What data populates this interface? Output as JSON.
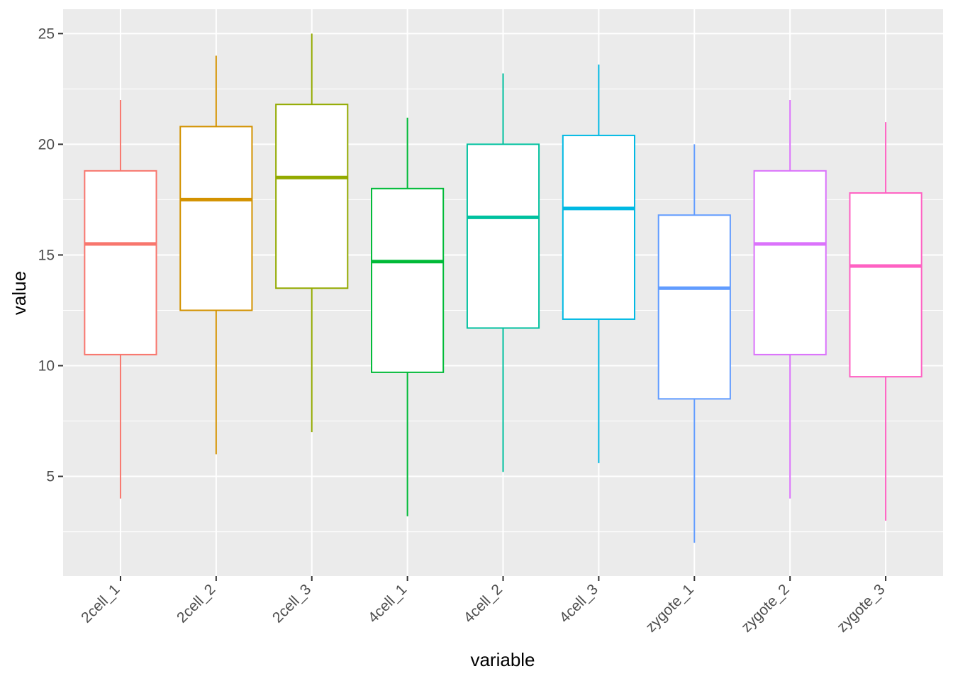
{
  "chart_data": {
    "type": "boxplot",
    "xlabel": "variable",
    "ylabel": "value",
    "ylim": [
      0.5,
      26.1
    ],
    "yticks": [
      5,
      10,
      15,
      20,
      25
    ],
    "grid": true,
    "legend": "none",
    "categories": [
      "2cell_1",
      "2cell_2",
      "2cell_3",
      "4cell_1",
      "4cell_2",
      "4cell_3",
      "zygote_1",
      "zygote_2",
      "zygote_3"
    ],
    "colors": [
      "#F8766D",
      "#D39200",
      "#93AA00",
      "#00BA38",
      "#00C19F",
      "#00B9E3",
      "#619CFF",
      "#DB72FB",
      "#FF61C3"
    ],
    "boxes": [
      {
        "category": "2cell_1",
        "min": 4.0,
        "q1": 10.5,
        "median": 15.5,
        "q3": 18.8,
        "max": 22.0
      },
      {
        "category": "2cell_2",
        "min": 6.0,
        "q1": 12.5,
        "median": 17.5,
        "q3": 20.8,
        "max": 24.0
      },
      {
        "category": "2cell_3",
        "min": 7.0,
        "q1": 13.5,
        "median": 18.5,
        "q3": 21.8,
        "max": 25.0
      },
      {
        "category": "4cell_1",
        "min": 3.2,
        "q1": 9.7,
        "median": 14.7,
        "q3": 18.0,
        "max": 21.2
      },
      {
        "category": "4cell_2",
        "min": 5.2,
        "q1": 11.7,
        "median": 16.7,
        "q3": 20.0,
        "max": 23.2
      },
      {
        "category": "4cell_3",
        "min": 5.6,
        "q1": 12.1,
        "median": 17.1,
        "q3": 20.4,
        "max": 23.6
      },
      {
        "category": "zygote_1",
        "min": 2.0,
        "q1": 8.5,
        "median": 13.5,
        "q3": 16.8,
        "max": 20.0
      },
      {
        "category": "zygote_2",
        "min": 4.0,
        "q1": 10.5,
        "median": 15.5,
        "q3": 18.8,
        "max": 22.0
      },
      {
        "category": "zygote_3",
        "min": 3.0,
        "q1": 9.5,
        "median": 14.5,
        "q3": 17.8,
        "max": 21.0
      }
    ]
  }
}
